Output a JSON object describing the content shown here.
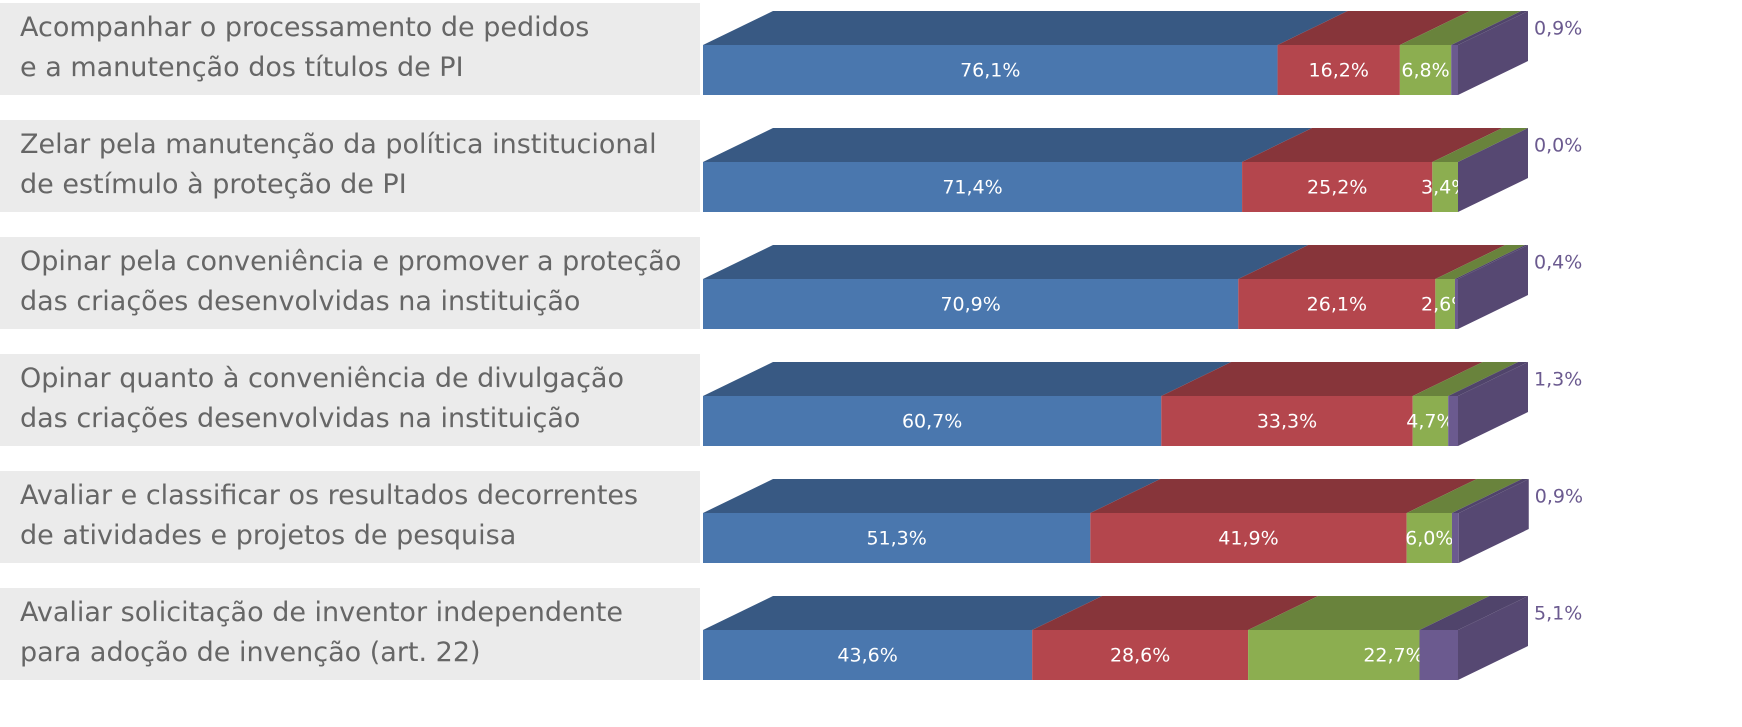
{
  "chart_data": {
    "type": "stacked-bar-3d",
    "categories": [
      "Acompanhar o processamento de pedidos\ne a manutenção dos títulos de PI",
      "Zelar pela manutenção da política institucional\nde estímulo à proteção de PI",
      "Opinar pela conveniência e promover a proteção\ndas criações desenvolvidas na instituição",
      "Opinar quanto à conveniência de divulgação\ndas criações desenvolvidas na instituição",
      "Avaliar e classificar os resultados decorrentes\nde atividades e projetos de pesquisa",
      "Avaliar solicitação de inventor independente\npara adoção de invenção (art. 22)"
    ],
    "xlim": [
      0,
      100
    ],
    "series": [
      {
        "color": "#4a77ae",
        "values": [
          76.1,
          71.4,
          70.9,
          60.7,
          51.3,
          43.6
        ],
        "value_labels": [
          "76,1%",
          "71,4%",
          "70,9%",
          "60,7%",
          "51,3%",
          "43,6%"
        ]
      },
      {
        "color": "#b4464d",
        "values": [
          16.2,
          25.2,
          26.1,
          33.3,
          41.9,
          28.6
        ],
        "value_labels": [
          "16,2%",
          "25,2%",
          "26,1%",
          "33,3%",
          "41,9%",
          "28,6%"
        ]
      },
      {
        "color": "#8cae50",
        "values": [
          6.8,
          3.4,
          2.6,
          4.7,
          6.0,
          22.7
        ],
        "value_labels": [
          "6,8%",
          "3,4%",
          "2,6%",
          "4,7%",
          "6,0%",
          "22,7%"
        ]
      },
      {
        "color": "#6b5a8f",
        "values": [
          0.9,
          0.0,
          0.4,
          1.3,
          0.9,
          5.1
        ],
        "value_labels": [
          "0,9%",
          "0,0%",
          "0,4%",
          "1,3%",
          "0,9%",
          "5,1%"
        ]
      }
    ]
  }
}
